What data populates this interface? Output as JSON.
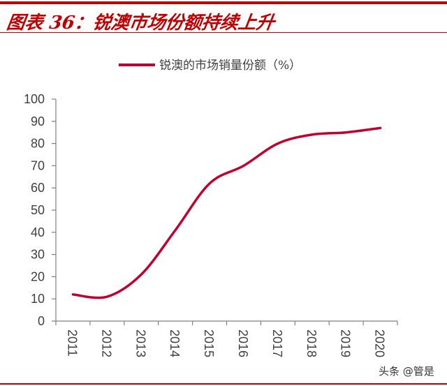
{
  "header": {
    "title": "图表 36：锐澳市场份额持续上升"
  },
  "watermark": "头条 @管是",
  "colors": {
    "accent": "#c00000",
    "series": "#c0002e",
    "axis": "#808080",
    "text": "#404040"
  },
  "chart_data": {
    "type": "line",
    "categories": [
      "2011",
      "2012",
      "2013",
      "2014",
      "2015",
      "2016",
      "2017",
      "2018",
      "2019",
      "2020"
    ],
    "series": [
      {
        "name": "锐澳的市场销量份额（%）",
        "values": [
          12,
          11,
          21,
          41,
          62,
          70,
          80,
          84,
          85,
          87
        ]
      }
    ],
    "ylim": [
      0,
      100
    ],
    "yticks": [
      "0",
      "10",
      "20",
      "30",
      "40",
      "50",
      "60",
      "70",
      "80",
      "90",
      "100"
    ],
    "smooth": true,
    "grid": false,
    "legend": "top"
  }
}
